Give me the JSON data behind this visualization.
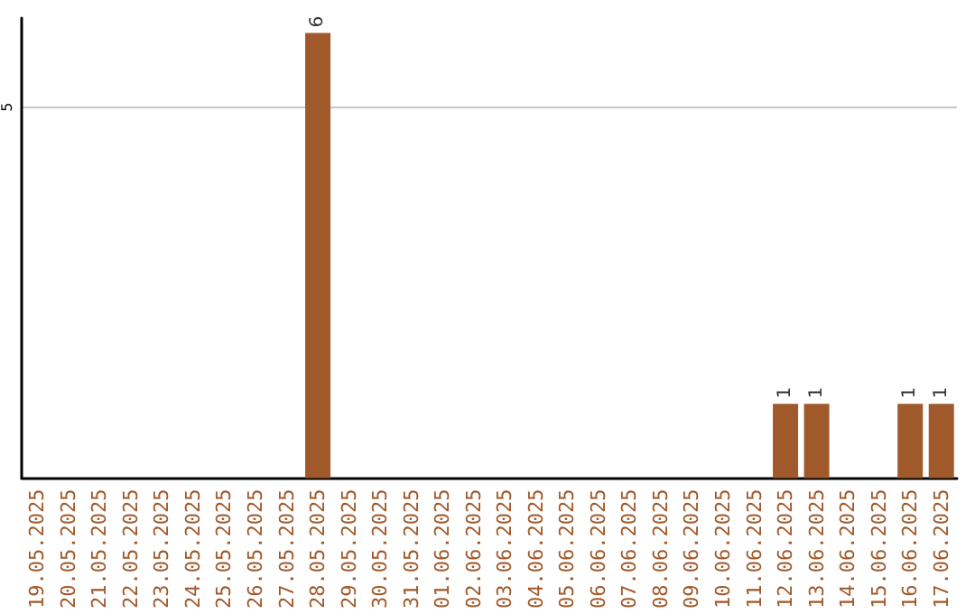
{
  "chart_data": {
    "type": "bar",
    "categories": [
      "19.05.2025",
      "20.05.2025",
      "21.05.2025",
      "22.05.2025",
      "23.05.2025",
      "24.05.2025",
      "25.05.2025",
      "26.05.2025",
      "27.05.2025",
      "28.05.2025",
      "29.05.2025",
      "30.05.2025",
      "31.05.2025",
      "01.06.2025",
      "02.06.2025",
      "03.06.2025",
      "04.06.2025",
      "05.06.2025",
      "06.06.2025",
      "07.06.2025",
      "08.06.2025",
      "09.06.2025",
      "10.06.2025",
      "11.06.2025",
      "12.06.2025",
      "13.06.2025",
      "14.06.2025",
      "15.06.2025",
      "16.06.2025",
      "17.06.2025"
    ],
    "values": [
      0,
      0,
      0,
      0,
      0,
      0,
      0,
      0,
      0,
      6,
      0,
      0,
      0,
      0,
      0,
      0,
      0,
      0,
      0,
      0,
      0,
      0,
      0,
      0,
      1,
      1,
      0,
      0,
      1,
      1
    ],
    "value_labels": [
      null,
      null,
      null,
      null,
      null,
      null,
      null,
      null,
      null,
      "6",
      null,
      null,
      null,
      null,
      null,
      null,
      null,
      null,
      null,
      null,
      null,
      null,
      null,
      null,
      "1",
      "1",
      null,
      null,
      "1",
      "1"
    ],
    "color": "#a0592a",
    "ylim": [
      0,
      6.2
    ],
    "yticks": [
      5
    ],
    "grid": "y"
  }
}
